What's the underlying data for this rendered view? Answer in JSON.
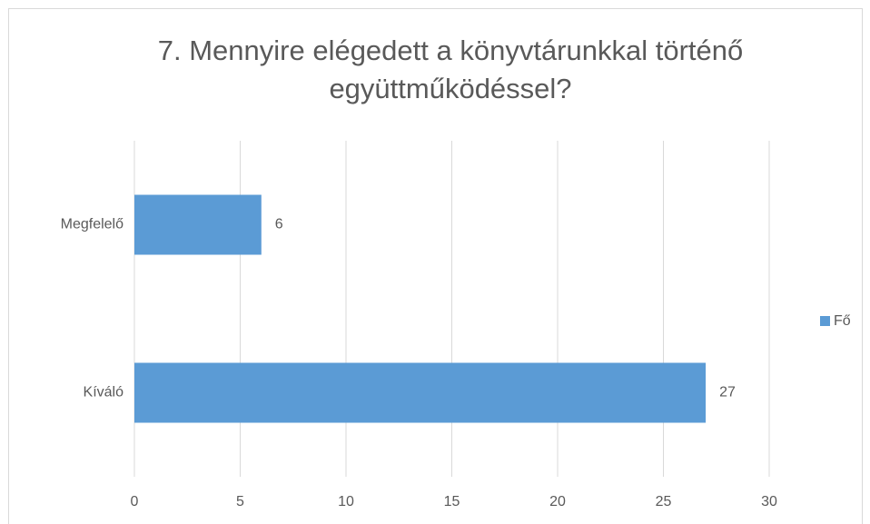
{
  "chart_data": {
    "type": "bar",
    "orientation": "horizontal",
    "title": [
      "7. Mennyire elégedett a könyvtárunkkal történő",
      "együttműködéssel?"
    ],
    "categories": [
      "Megfelelő",
      "Kíváló"
    ],
    "series": [
      {
        "name": "Fő",
        "color": "#5b9bd5",
        "values": [
          6,
          27
        ]
      }
    ],
    "xlim": [
      0,
      30
    ],
    "xticks": [
      0,
      5,
      10,
      15,
      20,
      25,
      30
    ],
    "grid": true,
    "legend": "right"
  }
}
